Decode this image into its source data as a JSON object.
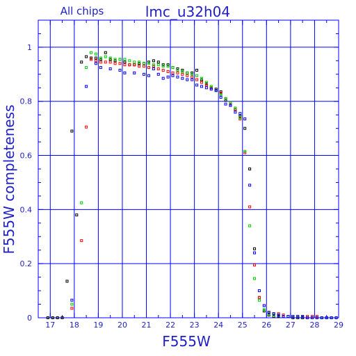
{
  "chart_data": {
    "type": "scatter",
    "title": "lmc_u32h04",
    "subtitle": "All chips",
    "xlabel": "F555W",
    "ylabel": "F555W completeness",
    "xlim": [
      16.5,
      29
    ],
    "ylim": [
      0,
      1.1
    ],
    "x_ticks": [
      "17",
      "18",
      "19",
      "20",
      "21",
      "22",
      "23",
      "24",
      "25",
      "26",
      "27",
      "28",
      "29"
    ],
    "y_ticks": [
      "0",
      "0.2",
      "0.4",
      "0.6",
      "0.8",
      "1"
    ],
    "grid": true,
    "colors": {
      "axes": "#0000ff",
      "text": "#2020c8"
    },
    "series": [
      {
        "color": "#000000",
        "x": [
          16.9,
          17.1,
          17.3,
          17.5,
          17.7,
          17.9,
          18.1,
          18.3,
          18.5,
          18.7,
          18.9,
          19.1,
          19.3,
          19.5,
          19.7,
          19.9,
          20.1,
          20.3,
          20.5,
          20.7,
          20.9,
          21.1,
          21.3,
          21.5,
          21.7,
          21.9,
          22.1,
          22.3,
          22.5,
          22.7,
          22.9,
          23.1,
          23.3,
          23.5,
          23.7,
          23.9,
          24.1,
          24.3,
          24.5,
          24.7,
          24.9,
          25.1,
          25.3,
          25.5,
          25.7,
          25.9,
          26.1,
          26.3,
          26.5,
          26.7,
          26.9,
          27.1,
          27.3,
          27.5,
          27.7,
          27.9,
          28.1,
          28.3,
          28.5,
          28.7,
          28.9
        ],
        "y": [
          0.0,
          0.0,
          0.0,
          0.0,
          0.135,
          0.69,
          0.38,
          0.945,
          0.965,
          0.96,
          0.96,
          0.955,
          0.98,
          0.955,
          0.95,
          0.955,
          0.945,
          0.935,
          0.935,
          0.94,
          0.94,
          0.945,
          0.95,
          0.945,
          0.935,
          0.935,
          0.925,
          0.92,
          0.915,
          0.905,
          0.905,
          0.915,
          0.88,
          0.865,
          0.85,
          0.845,
          0.835,
          0.805,
          0.785,
          0.77,
          0.745,
          0.7,
          0.55,
          0.255,
          0.075,
          0.025,
          0.01,
          0.005,
          0.005,
          0.005,
          0.005,
          0.0,
          0.0,
          0.0,
          0.0,
          0.0,
          0.0,
          0.0,
          0.0,
          0.0,
          0.0
        ]
      },
      {
        "color": "#ff0000",
        "x": [
          17.9,
          18.3,
          18.5,
          18.7,
          18.9,
          19.1,
          19.3,
          19.5,
          19.7,
          19.9,
          20.1,
          20.3,
          20.5,
          20.7,
          20.9,
          21.1,
          21.3,
          21.5,
          21.7,
          21.9,
          22.1,
          22.3,
          22.5,
          22.7,
          22.9,
          23.1,
          23.3,
          23.5,
          23.7,
          23.9,
          24.1,
          24.3,
          24.5,
          24.7,
          24.9,
          25.1,
          25.3,
          25.5,
          25.7,
          25.9,
          26.1,
          26.3,
          26.5,
          26.7,
          26.9,
          27.1,
          27.3,
          27.5,
          27.7,
          27.9,
          28.1,
          28.3,
          28.5,
          28.7,
          28.9
        ],
        "y": [
          0.035,
          0.285,
          0.705,
          0.955,
          0.95,
          0.945,
          0.945,
          0.945,
          0.94,
          0.94,
          0.935,
          0.935,
          0.935,
          0.93,
          0.93,
          0.925,
          0.93,
          0.92,
          0.915,
          0.91,
          0.905,
          0.905,
          0.9,
          0.895,
          0.89,
          0.88,
          0.87,
          0.86,
          0.85,
          0.84,
          0.83,
          0.81,
          0.79,
          0.77,
          0.735,
          0.61,
          0.41,
          0.195,
          0.075,
          0.045,
          0.02,
          0.015,
          0.015,
          0.01,
          0.005,
          0.005,
          0.005,
          0.005,
          0.005,
          0.005,
          0.005,
          0.0,
          0.0,
          0.0,
          0.0
        ]
      },
      {
        "color": "#00cc00",
        "x": [
          17.9,
          18.3,
          18.5,
          18.7,
          18.9,
          19.1,
          19.3,
          19.5,
          19.7,
          19.9,
          20.1,
          20.3,
          20.5,
          20.7,
          20.9,
          21.1,
          21.3,
          21.5,
          21.7,
          21.9,
          22.1,
          22.3,
          22.5,
          22.7,
          22.9,
          23.1,
          23.3,
          23.5,
          23.7,
          23.9,
          24.1,
          24.3,
          24.5,
          24.7,
          24.9,
          25.1,
          25.3,
          25.5,
          25.7,
          25.9,
          26.1,
          26.3,
          26.5,
          26.7,
          26.9,
          27.1,
          27.3,
          27.5,
          27.7,
          27.9,
          28.1,
          28.3,
          28.5,
          28.7,
          28.9
        ],
        "y": [
          0.05,
          0.425,
          0.925,
          0.98,
          0.975,
          0.96,
          0.965,
          0.96,
          0.955,
          0.955,
          0.955,
          0.95,
          0.945,
          0.945,
          0.94,
          0.94,
          0.935,
          0.935,
          0.93,
          0.93,
          0.925,
          0.915,
          0.91,
          0.905,
          0.9,
          0.895,
          0.885,
          0.87,
          0.855,
          0.84,
          0.825,
          0.81,
          0.795,
          0.775,
          0.74,
          0.615,
          0.34,
          0.145,
          0.065,
          0.03,
          0.015,
          0.01,
          0.01,
          0.005,
          0.005,
          0.005,
          0.005,
          0.005,
          0.0,
          0.0,
          0.0,
          0.0,
          0.0,
          0.0,
          0.0
        ]
      },
      {
        "color": "#0000ff",
        "x": [
          17.9,
          18.5,
          18.9,
          19.1,
          19.5,
          19.9,
          20.1,
          20.5,
          20.9,
          21.1,
          21.3,
          21.5,
          21.7,
          21.9,
          22.1,
          22.3,
          22.5,
          22.7,
          22.9,
          23.1,
          23.3,
          23.5,
          23.7,
          23.9,
          24.1,
          24.3,
          24.5,
          24.7,
          24.9,
          25.1,
          25.3,
          25.5,
          25.7,
          25.9,
          26.1,
          26.3,
          26.5,
          26.7,
          26.9,
          27.1,
          27.3,
          27.5,
          27.7,
          27.9,
          28.1,
          28.3,
          28.5,
          28.7,
          28.9
        ],
        "y": [
          0.065,
          0.855,
          0.94,
          0.925,
          0.92,
          0.915,
          0.905,
          0.905,
          0.9,
          0.895,
          0.92,
          0.9,
          0.885,
          0.89,
          0.895,
          0.89,
          0.885,
          0.88,
          0.88,
          0.86,
          0.855,
          0.85,
          0.845,
          0.84,
          0.815,
          0.79,
          0.785,
          0.76,
          0.755,
          0.735,
          0.49,
          0.24,
          0.1,
          0.045,
          0.02,
          0.015,
          0.01,
          0.005,
          0.005,
          0.005,
          0.005,
          0.005,
          0.0,
          0.0,
          0.0,
          0.0,
          0.0,
          0.0,
          0.0
        ]
      }
    ]
  }
}
